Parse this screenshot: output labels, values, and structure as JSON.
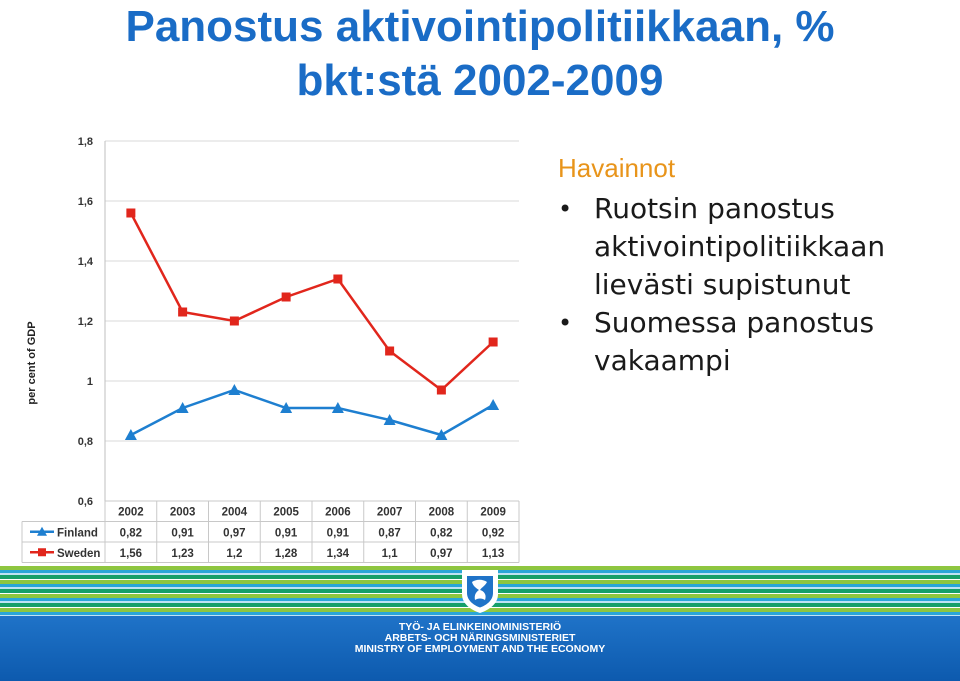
{
  "title": {
    "line1": "Panostus aktivointipolitiikkaan, %",
    "line2": "bkt:stä 2002-2009"
  },
  "notes": {
    "heading": "Havainnot",
    "bullets": [
      [
        "Ruotsin panostus",
        "aktivointipolitiikkaan",
        "lievästi supistunut"
      ],
      [
        "Suomessa panostus",
        "vakaampi"
      ]
    ]
  },
  "chart_data": {
    "type": "line",
    "title": "",
    "xlabel": "",
    "ylabel": "per cent of GDP",
    "categories": [
      "2002",
      "2003",
      "2004",
      "2005",
      "2006",
      "2007",
      "2008",
      "2009"
    ],
    "y_ticks": [
      "0,6",
      "0,8",
      "1",
      "1,2",
      "1,4",
      "1,6",
      "1,8"
    ],
    "ylim": [
      0.6,
      1.8
    ],
    "grid": true,
    "legend": "data-table-below",
    "series": [
      {
        "name": "Finland",
        "values": [
          0.82,
          0.91,
          0.97,
          0.91,
          0.91,
          0.87,
          0.82,
          0.92
        ],
        "labels": [
          "0,82",
          "0,91",
          "0,97",
          "0,91",
          "0,91",
          "0,87",
          "0,82",
          "0,92"
        ],
        "color": "#1e7fd0",
        "marker": "triangle"
      },
      {
        "name": "Sweden",
        "values": [
          1.56,
          1.23,
          1.2,
          1.28,
          1.34,
          1.1,
          0.97,
          1.13
        ],
        "labels": [
          "1,56",
          "1,23",
          "1,2",
          "1,28",
          "1,34",
          "1,1",
          "0,97",
          "1,13"
        ],
        "color": "#e1261c",
        "marker": "square"
      }
    ]
  },
  "footer": {
    "ministry_lines": [
      "TYÖ- JA ELINKEINOMINISTERIÖ",
      "ARBETS- OCH NÄRINGSMINISTERIET",
      "MINISTRY OF EMPLOYMENT AND THE ECONOMY"
    ]
  },
  "colors": {
    "title": "#1a6cc6",
    "heading": "#e8941a",
    "footer_band": "#1f73c8"
  }
}
